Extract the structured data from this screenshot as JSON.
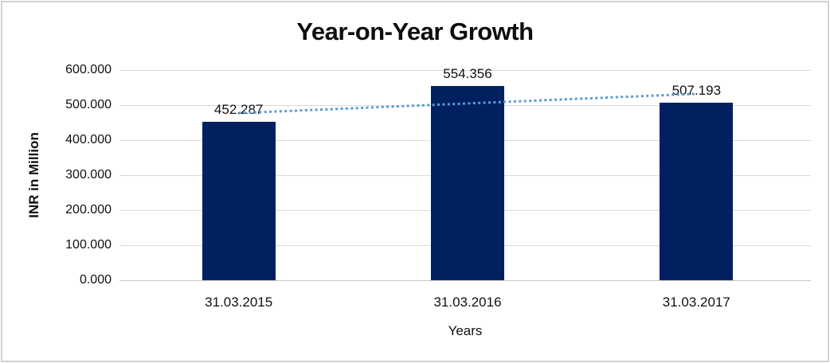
{
  "chart_data": {
    "type": "bar",
    "title": "Year-on-Year Growth",
    "xlabel": "Years",
    "ylabel": "INR in Million",
    "categories": [
      "31.03.2015",
      "31.03.2016",
      "31.03.2017"
    ],
    "values": [
      452.287,
      554.356,
      507.193
    ],
    "value_labels": [
      "452.287",
      "554.356",
      "507.193"
    ],
    "ylim": [
      0,
      600
    ],
    "yticks": [
      {
        "value": 600,
        "label": "600.000"
      },
      {
        "value": 500,
        "label": "500.000"
      },
      {
        "value": 400,
        "label": "400.000"
      },
      {
        "value": 300,
        "label": "300.000"
      },
      {
        "value": 200,
        "label": "200.000"
      },
      {
        "value": 100,
        "label": "100.000"
      },
      {
        "value": 0,
        "label": "0.000"
      }
    ],
    "grid": true,
    "legend": false,
    "trendline": {
      "type": "linear",
      "style": "dotted",
      "start_value": 477.2,
      "end_value": 532.1
    }
  },
  "colors": {
    "bar": "#012060",
    "trendline": "#5b9bd5",
    "gridline": "#d9d9d9",
    "axis_line": "#c6c6c6",
    "text": "#111111",
    "frame_border": "#d2d2d2"
  }
}
